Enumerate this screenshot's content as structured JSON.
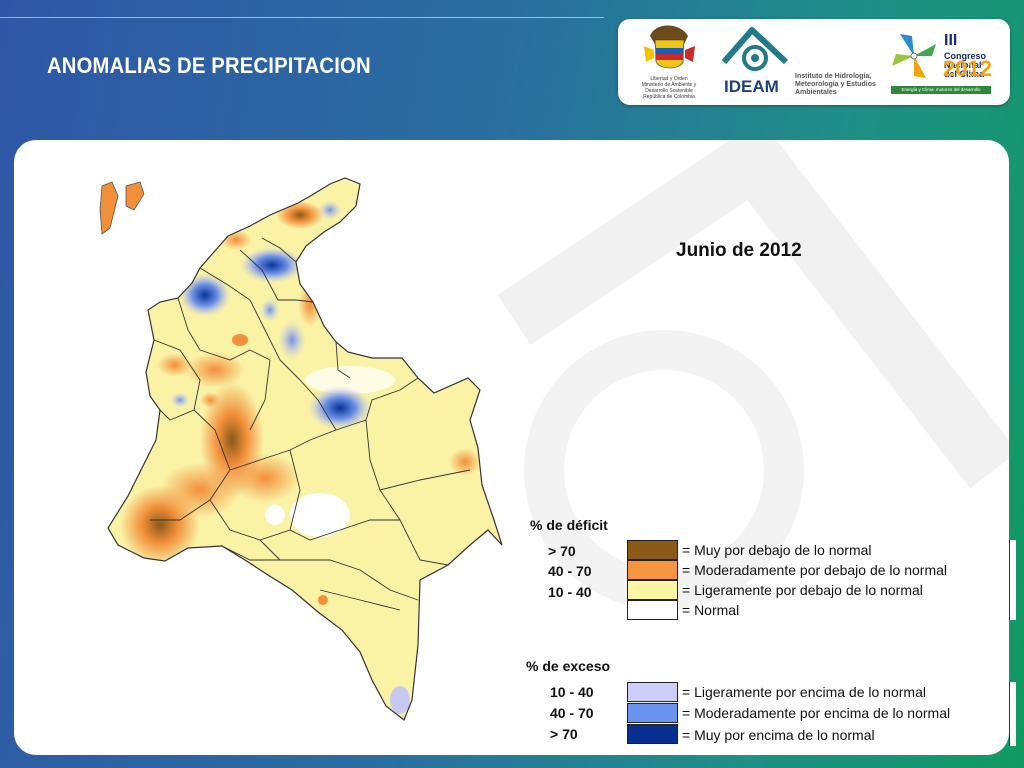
{
  "header": {
    "title": "ANOMALIAS DE PRECIPITACION"
  },
  "logos": {
    "ministerio_lines": [
      "Libertad y Orden",
      "Ministerio de Ambiente y",
      "Desarrollo Sostenible",
      "República de Colombia"
    ],
    "ideam_name": "IDEAM",
    "ideam_institute": "Instituto de Hidrología, Meteorología y Estudios Ambientales",
    "congreso_roman": "III",
    "congreso_lines": [
      "Congreso",
      "Nacional",
      "del Clima"
    ],
    "congreso_year": "2012",
    "congreso_slogan": "Energía y Clima: motores del desarrollo económico"
  },
  "map": {
    "date": "Junio de 2012",
    "colors": {
      "muy_debajo": "#8a5a16",
      "moderado_debajo": "#f28f3b",
      "ligero_debajo": "#faf3a6",
      "normal": "#ffffff",
      "ligero_encima": "#c8c8f2",
      "moderado_encima": "#6f93e8",
      "muy_encima": "#0a3296"
    }
  },
  "legend": {
    "deficit_title": "% de déficit",
    "deficit_items": [
      {
        "range": "> 70",
        "label": "= Muy por debajo de lo normal",
        "color": "#8a5a16"
      },
      {
        "range": "40 -  70",
        "label": "= Moderadamente por debajo de lo normal",
        "color": "#f5953f"
      },
      {
        "range": "10 -  40",
        "label": "= Ligeramente por debajo de lo normal",
        "color": "#fbf6a3"
      },
      {
        "range": "",
        "label": "= Normal",
        "color": "#ffffff"
      }
    ],
    "exceso_title": "% de exceso",
    "exceso_items": [
      {
        "range": "10 -  40",
        "label": "= Ligeramente por encima de lo normal",
        "color": "#cccdf8"
      },
      {
        "range": "40 -  70",
        "label": "= Moderadamente por encima de lo normal",
        "color": "#6a93f0"
      },
      {
        "range": "> 70",
        "label": "= Muy por encima de lo normal",
        "color": "#082f90"
      }
    ]
  }
}
